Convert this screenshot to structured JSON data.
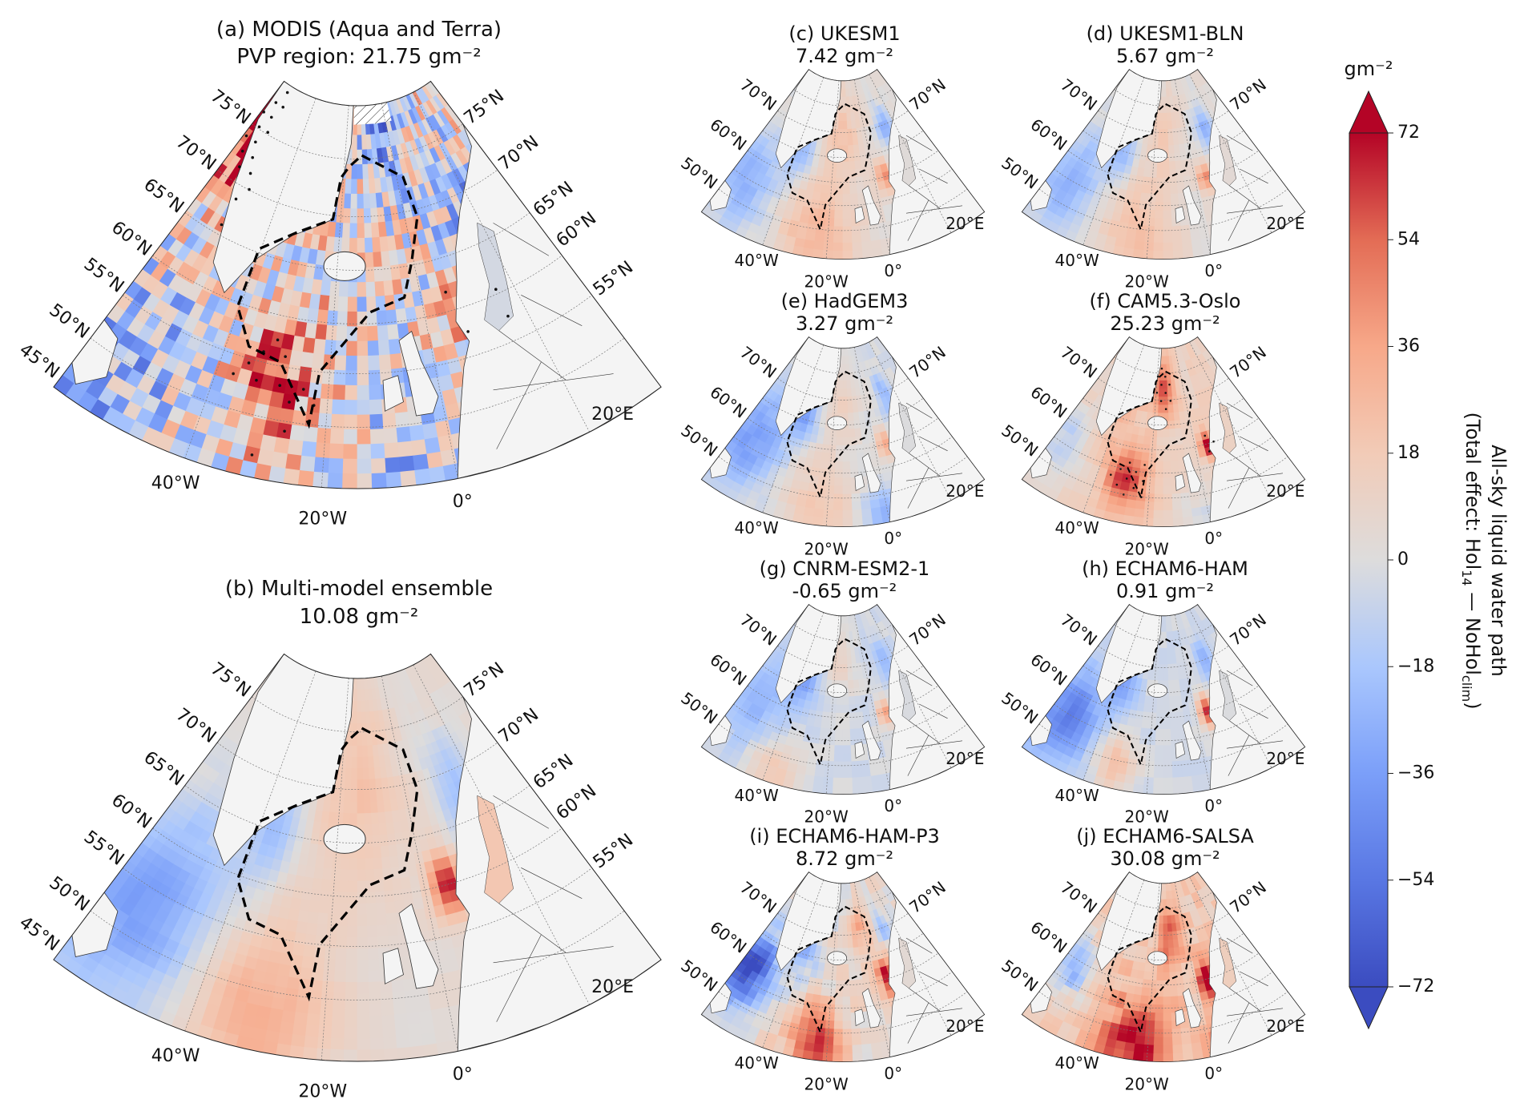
{
  "figure": {
    "panels": [
      {
        "id": "a",
        "title": "(a) MODIS (Aqua and Terra)",
        "subtitle": "PVP region: 21.75 gm⁻²"
      },
      {
        "id": "b",
        "title": "(b) Multi-model ensemble",
        "subtitle": "10.08 gm⁻²"
      },
      {
        "id": "c",
        "title": "(c) UKESM1",
        "subtitle": "7.42 gm⁻²"
      },
      {
        "id": "d",
        "title": "(d) UKESM1-BLN",
        "subtitle": "5.67 gm⁻²"
      },
      {
        "id": "e",
        "title": "(e) HadGEM3",
        "subtitle": "3.27 gm⁻²"
      },
      {
        "id": "f",
        "title": "(f) CAM5.3-Oslo",
        "subtitle": "25.23 gm⁻²"
      },
      {
        "id": "g",
        "title": "(g) CNRM-ESM2-1",
        "subtitle": "-0.65 gm⁻²"
      },
      {
        "id": "h",
        "title": "(h) ECHAM6-HAM",
        "subtitle": "0.91 gm⁻²"
      },
      {
        "id": "i",
        "title": "(i) ECHAM6-HAM-P3",
        "subtitle": "8.72 gm⁻²"
      },
      {
        "id": "j",
        "title": "(j) ECHAM6-SALSA",
        "subtitle": "30.08 gm⁻²"
      }
    ],
    "lat_labels_large": {
      "left": [
        "75°N",
        "70°N",
        "65°N",
        "60°N",
        "55°N",
        "50°N",
        "45°N"
      ],
      "right": [
        "75°N",
        "70°N",
        "65°N",
        "60°N",
        "55°N"
      ]
    },
    "lat_labels_small": {
      "left": [
        "70°N",
        "60°N",
        "50°N"
      ],
      "right": [
        "70°N"
      ]
    },
    "lon_labels": [
      "40°W",
      "20°W",
      "0°",
      "20°E"
    ]
  },
  "colorbar": {
    "unit": "gm⁻²",
    "min": -72,
    "max": 72,
    "ticks": [
      "72",
      "54",
      "36",
      "18",
      "0",
      "−18",
      "−36",
      "−54",
      "−72"
    ],
    "label_line1": "All-sky liquid water path",
    "label_line2": {
      "pre": "(Total effect: Hol",
      "sub1": "14",
      "mid": " — NoHol",
      "sub2": "clim",
      "post": ")"
    },
    "colors": [
      "#3b4cc0",
      "#5977e3",
      "#7b9ff9",
      "#aac7fd",
      "#dddcdc",
      "#f2cbb7",
      "#f7a889",
      "#e36c55",
      "#b40426"
    ]
  },
  "style": {
    "land": "#f4f4f4",
    "coast": "#333333",
    "grid": "#777777"
  }
}
